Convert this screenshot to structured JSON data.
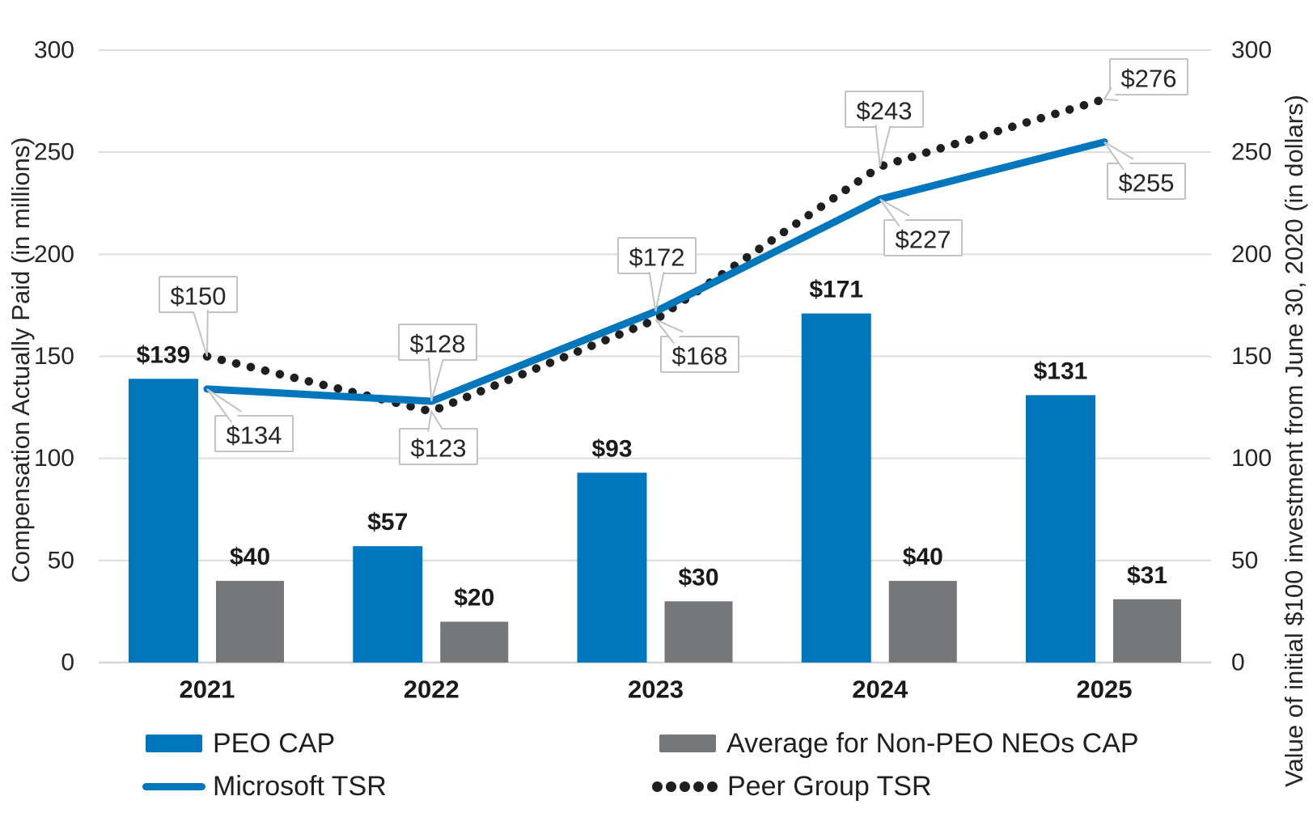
{
  "chart_data": {
    "type": "combo-bar-line",
    "categories": [
      "2021",
      "2022",
      "2023",
      "2024",
      "2025"
    ],
    "series": [
      {
        "name": "PEO CAP",
        "type": "bar",
        "color": "#0076bd",
        "values": [
          139,
          57,
          93,
          171,
          131
        ],
        "point_labels": [
          "$139",
          "$57",
          "$93",
          "$171",
          "$131"
        ]
      },
      {
        "name": "Average for Non-PEO NEOs CAP",
        "type": "bar",
        "color": "#75777b",
        "values": [
          40,
          20,
          30,
          40,
          31
        ],
        "point_labels": [
          "$40",
          "$20",
          "$30",
          "$40",
          "$31"
        ]
      },
      {
        "name": "Microsoft TSR",
        "type": "line",
        "line_style": "solid",
        "color": "#0076bd",
        "values": [
          134,
          128,
          172,
          227,
          255
        ],
        "point_labels": [
          "$134",
          "$128",
          "$172",
          "$227",
          "$255"
        ]
      },
      {
        "name": "Peer Group TSR",
        "type": "line",
        "line_style": "dotted",
        "color": "#1f1f1f",
        "values": [
          150,
          123,
          168,
          243,
          276
        ],
        "point_labels": [
          "$150",
          "$123",
          "$168",
          "$243",
          "$276"
        ]
      }
    ],
    "left_axis": {
      "title": "Compensation Actually Paid (in millions)",
      "min": 0,
      "max": 300,
      "ticks": [
        0,
        50,
        100,
        150,
        200,
        250,
        300
      ]
    },
    "right_axis": {
      "title": "Value of initial $100 investment from June 30, 2020 (in dollars)",
      "min": 0,
      "max": 300,
      "ticks": [
        0,
        50,
        100,
        150,
        200,
        250,
        300
      ]
    },
    "grid": true,
    "legend_position": "bottom",
    "colors": {
      "grid_line": "#dcdcdc",
      "axis_line": "#d6d6d6",
      "tick_text": "#262626",
      "label_text": "#1a1a1a",
      "callout_border": "#c2c2c2",
      "callout_fill": "#ffffff"
    }
  }
}
